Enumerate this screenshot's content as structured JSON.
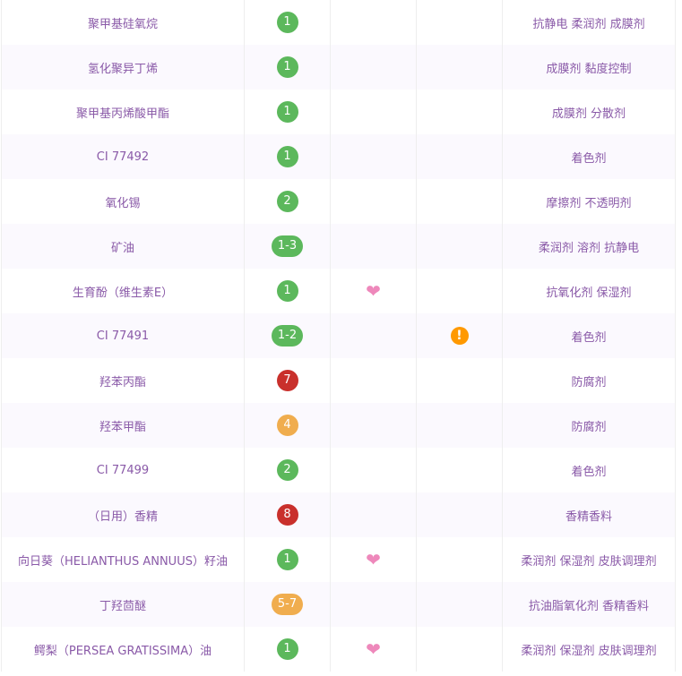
{
  "colors": {
    "safe": "#5cb85c",
    "medium": "#f0ad4e",
    "high": "#c9302c",
    "heart": "#ee88bb",
    "warning": "#ff9900",
    "text": "#8a5aa8"
  },
  "rows": [
    {
      "name": "聚甲基硅氧烷",
      "score": "1",
      "level": "safe",
      "active": false,
      "acne": false,
      "function": "抗静电 柔润剂 成膜剂"
    },
    {
      "name": "氢化聚异丁烯",
      "score": "1",
      "level": "safe",
      "active": false,
      "acne": false,
      "function": "成膜剂 黏度控制"
    },
    {
      "name": "聚甲基丙烯酸甲酯",
      "score": "1",
      "level": "safe",
      "active": false,
      "acne": false,
      "function": "成膜剂 分散剂"
    },
    {
      "name": "CI 77492",
      "score": "1",
      "level": "safe",
      "active": false,
      "acne": false,
      "function": "着色剂"
    },
    {
      "name": "氧化锡",
      "score": "2",
      "level": "safe",
      "active": false,
      "acne": false,
      "function": "摩擦剂 不透明剂"
    },
    {
      "name": "矿油",
      "score": "1-3",
      "level": "safe",
      "active": false,
      "acne": false,
      "function": "柔润剂 溶剂 抗静电"
    },
    {
      "name": "生育酚（维生素E）",
      "score": "1",
      "level": "safe",
      "active": true,
      "acne": false,
      "function": "抗氧化剂 保湿剂"
    },
    {
      "name": "CI 77491",
      "score": "1-2",
      "level": "safe",
      "active": false,
      "acne": true,
      "function": "着色剂"
    },
    {
      "name": "羟苯丙酯",
      "score": "7",
      "level": "high",
      "active": false,
      "acne": false,
      "function": "防腐剂"
    },
    {
      "name": "羟苯甲酯",
      "score": "4",
      "level": "medium",
      "active": false,
      "acne": false,
      "function": "防腐剂"
    },
    {
      "name": "CI 77499",
      "score": "2",
      "level": "safe",
      "active": false,
      "acne": false,
      "function": "着色剂"
    },
    {
      "name": "（日用）香精",
      "score": "8",
      "level": "high",
      "active": false,
      "acne": false,
      "function": "香精香料"
    },
    {
      "name": "向日葵（HELIANTHUS ANNUUS）籽油",
      "score": "1",
      "level": "safe",
      "active": true,
      "acne": false,
      "function": "柔润剂 保湿剂 皮肤调理剂"
    },
    {
      "name": "丁羟茴醚",
      "score": "5-7",
      "level": "medium",
      "active": false,
      "acne": false,
      "function": "抗油脂氧化剂 香精香料"
    },
    {
      "name": "鳄梨（PERSEA GRATISSIMA）油",
      "score": "1",
      "level": "safe",
      "active": true,
      "acne": false,
      "function": "柔润剂 保湿剂 皮肤调理剂"
    }
  ]
}
